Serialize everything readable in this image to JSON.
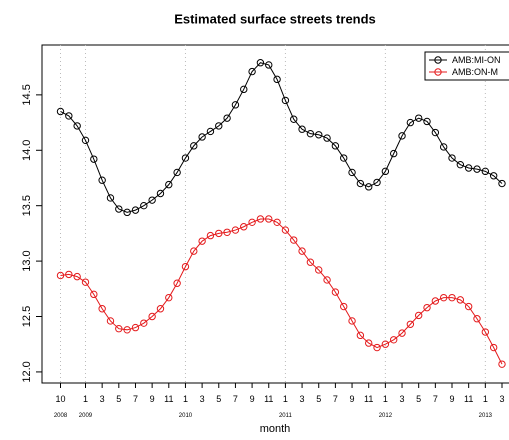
{
  "chart_data": {
    "type": "line",
    "title": "Estimated surface streets trends",
    "x_label": "month",
    "categories": [
      "10",
      null,
      null,
      "1",
      null,
      "3",
      null,
      "5",
      null,
      "7",
      null,
      "9",
      null,
      "11",
      null,
      "1",
      null,
      "3",
      null,
      "5",
      null,
      "7",
      null,
      "9",
      null,
      "11",
      null,
      "1",
      null,
      "3",
      null,
      "5",
      null,
      "7",
      null,
      "9",
      null,
      "11",
      null,
      "1",
      null,
      "3",
      null,
      "5",
      null,
      "7",
      null,
      "9",
      null,
      "11",
      null,
      "1",
      null,
      "3"
    ],
    "year_labels": [
      {
        "index": 0,
        "label": "2008"
      },
      {
        "index": 3,
        "label": "2009"
      },
      {
        "index": 15,
        "label": "2010"
      },
      {
        "index": 27,
        "label": "2011"
      },
      {
        "index": 39,
        "label": "2012"
      },
      {
        "index": 51,
        "label": "2013"
      }
    ],
    "series": [
      {
        "name": "AMB:MI-ON",
        "color": "#000000",
        "values": [
          14.35,
          14.31,
          14.22,
          14.09,
          13.92,
          13.73,
          13.57,
          13.47,
          13.44,
          13.46,
          13.5,
          13.55,
          13.61,
          13.69,
          13.8,
          13.93,
          14.04,
          14.12,
          14.17,
          14.22,
          14.29,
          14.41,
          14.55,
          14.71,
          14.79,
          14.77,
          14.64,
          14.45,
          14.28,
          14.19,
          14.15,
          14.14,
          14.11,
          14.04,
          13.93,
          13.8,
          13.7,
          13.67,
          13.71,
          13.81,
          13.97,
          14.13,
          14.25,
          14.29,
          14.26,
          14.16,
          14.03,
          13.93,
          13.87,
          13.84,
          13.83,
          13.81,
          13.77,
          13.7
        ]
      },
      {
        "name": "AMB:ON-M",
        "color": "#e41a1c",
        "values": [
          12.87,
          12.88,
          12.86,
          12.81,
          12.7,
          12.57,
          12.46,
          12.39,
          12.38,
          12.4,
          12.44,
          12.5,
          12.57,
          12.67,
          12.8,
          12.95,
          13.09,
          13.18,
          13.23,
          13.25,
          13.26,
          13.28,
          13.31,
          13.35,
          13.38,
          13.38,
          13.35,
          13.28,
          13.19,
          13.09,
          12.99,
          12.92,
          12.83,
          12.72,
          12.59,
          12.46,
          12.33,
          12.26,
          12.22,
          12.25,
          12.29,
          12.35,
          12.43,
          12.51,
          12.58,
          12.64,
          12.67,
          12.67,
          12.65,
          12.59,
          12.48,
          12.36,
          12.22,
          12.07
        ]
      }
    ],
    "ylim": [
      11.9,
      14.95
    ],
    "yticks": [
      {
        "value": 12,
        "label": "12.0"
      },
      12.5,
      {
        "value": 13,
        "label": "13.0"
      },
      13.5,
      {
        "value": 14,
        "label": "14.0"
      },
      14.5
    ],
    "legend": "top-right"
  }
}
